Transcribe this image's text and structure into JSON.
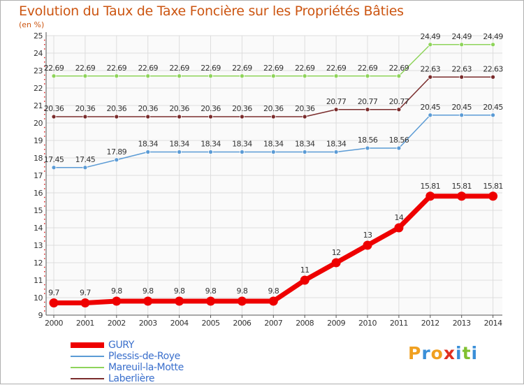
{
  "chart_data": {
    "type": "line",
    "title": "Evolution du Taux de Taxe Foncière sur les Propriétés Bâties",
    "unit_label": "(en %)",
    "x": [
      "2000",
      "2001",
      "2002",
      "2003",
      "2004",
      "2005",
      "2006",
      "2007",
      "2008",
      "2009",
      "2010",
      "2011",
      "2012",
      "2013",
      "2014"
    ],
    "ylim": [
      9,
      25
    ],
    "y_ticks": [
      "9",
      "10",
      "11",
      "12",
      "13",
      "14",
      "15",
      "16",
      "17",
      "18",
      "19",
      "20",
      "21",
      "22",
      "23",
      "24",
      "25"
    ],
    "series": [
      {
        "name": "GURY",
        "color": "#ee0000",
        "values": [
          9.7,
          9.7,
          9.8,
          9.8,
          9.8,
          9.8,
          9.8,
          9.8,
          11,
          12,
          13,
          14,
          15.81,
          15.81,
          15.81
        ],
        "labels": [
          "9.7",
          "9.7",
          "9.8",
          "9.8",
          "9.8",
          "9.8",
          "9.8",
          "9.8",
          "11",
          "12",
          "13",
          "14",
          "15.81",
          "15.81",
          "15.81"
        ]
      },
      {
        "name": "Plessis-de-Roye",
        "color": "#5b9bd5",
        "values": [
          17.45,
          17.45,
          17.89,
          18.34,
          18.34,
          18.34,
          18.34,
          18.34,
          18.34,
          18.34,
          18.56,
          18.56,
          20.45,
          20.45,
          20.45
        ],
        "labels": [
          "17.45",
          "17.45",
          "17.89",
          "18.34",
          "18.34",
          "18.34",
          "18.34",
          "18.34",
          "18.34",
          "18.34",
          "18.56",
          "18.56",
          "20.45",
          "20.45",
          "20.45"
        ]
      },
      {
        "name": "Mareuil-la-Motte",
        "color": "#8ed45a",
        "values": [
          22.69,
          22.69,
          22.69,
          22.69,
          22.69,
          22.69,
          22.69,
          22.69,
          22.69,
          22.69,
          22.69,
          22.69,
          24.49,
          24.49,
          24.49
        ],
        "labels": [
          "22.69",
          "22.69",
          "22.69",
          "22.69",
          "22.69",
          "22.69",
          "22.69",
          "22.69",
          "22.69",
          "22.69",
          "22.69",
          "22.69",
          "24.49",
          "24.49",
          "24.49"
        ]
      },
      {
        "name": "Laberlière",
        "color": "#7a2c2c",
        "values": [
          20.36,
          20.36,
          20.36,
          20.36,
          20.36,
          20.36,
          20.36,
          20.36,
          20.36,
          20.77,
          20.77,
          20.77,
          22.63,
          22.63,
          22.63
        ],
        "labels": [
          "20.36",
          "20.36",
          "20.36",
          "20.36",
          "20.36",
          "20.36",
          "20.36",
          "20.36",
          "20.36",
          "20.77",
          "20.77",
          "20.77",
          "22.63",
          "22.63",
          "22.63"
        ]
      }
    ],
    "grid": true,
    "legend_position": "bottom-left"
  },
  "logo": {
    "text": "Proxiti",
    "letters": [
      "P",
      "r",
      "o",
      "x",
      "i",
      "t",
      "i"
    ],
    "colors": [
      "#f0a020",
      "#3a8fd8",
      "#f0a020",
      "#e03020",
      "#3a8fd8",
      "#80c030",
      "#3a8fd8"
    ]
  }
}
